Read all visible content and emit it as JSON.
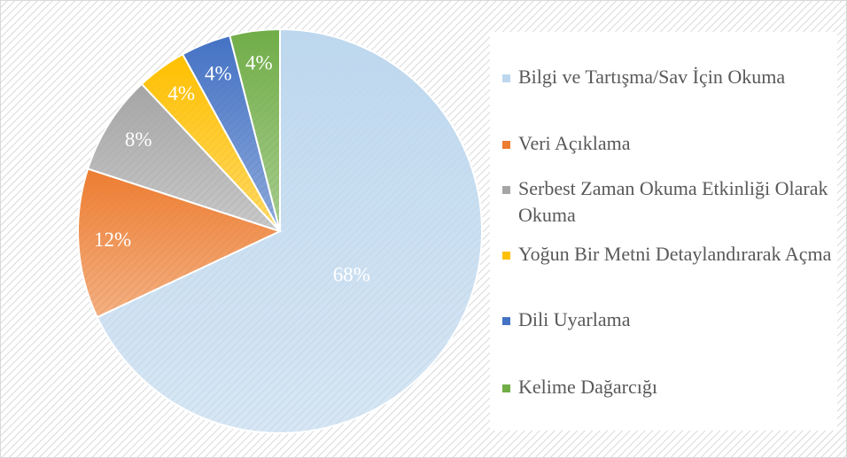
{
  "chart_data": {
    "type": "pie",
    "categories": [
      "Bilgi ve Tartışma/Sav İçin Okuma",
      "Veri Açıklama",
      "Serbest Zaman Okuma Etkinliği Olarak Okuma",
      "Yoğun Bir Metni Detaylandırarak Açma",
      "Dili Uyarlama",
      "Kelime Dağarcığı"
    ],
    "values": [
      68,
      12,
      8,
      4,
      4,
      4
    ],
    "value_labels": [
      "68%",
      "12%",
      "8%",
      "4%",
      "4%",
      "4%"
    ],
    "colors": [
      "#bdd7ee",
      "#ed7d31",
      "#a5a5a5",
      "#ffc000",
      "#4472c4",
      "#70ad47"
    ]
  }
}
